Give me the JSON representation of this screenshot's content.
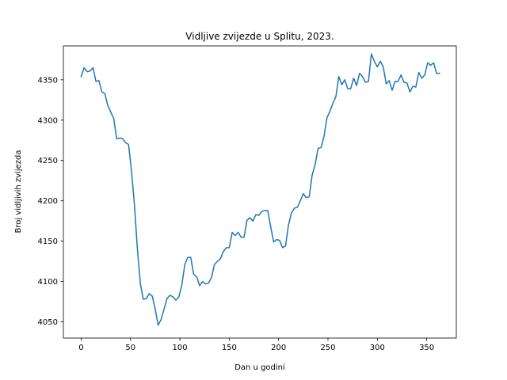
{
  "chart_data": {
    "type": "line",
    "title": "Vidljive zvijezde u Splitu, 2023.",
    "xlabel": "Dan u godini",
    "ylabel": "Broj vidljivih zvijezda",
    "xlim": [
      -18,
      380
    ],
    "ylim": [
      4030,
      4392
    ],
    "xticks": [
      0,
      50,
      100,
      150,
      200,
      250,
      300,
      350
    ],
    "yticks": [
      4050,
      4100,
      4150,
      4200,
      4250,
      4300,
      4350
    ],
    "grid": false,
    "color": "#1f77b4",
    "series": [
      {
        "x": [
          0,
          3,
          6,
          9,
          12,
          15,
          18,
          21,
          24,
          27,
          30,
          33,
          36,
          39,
          42,
          45,
          48,
          51,
          54,
          57,
          60,
          63,
          66,
          69,
          72,
          75,
          78,
          81,
          84,
          87,
          90,
          93,
          96,
          99,
          102,
          105,
          108,
          111,
          114,
          117,
          120,
          123,
          126,
          129,
          132,
          135,
          138,
          141,
          144,
          147,
          150,
          153,
          156,
          159,
          162,
          165,
          168,
          171,
          174,
          177,
          180,
          183,
          186,
          189,
          192,
          195,
          198,
          201,
          204,
          207,
          210,
          213,
          216,
          219,
          222,
          225,
          228,
          231,
          234,
          237,
          240,
          243,
          246,
          249,
          252,
          255,
          258,
          261,
          264,
          267,
          270,
          273,
          276,
          279,
          282,
          285,
          288,
          291,
          294,
          297,
          300,
          303,
          306,
          309,
          312,
          315,
          318,
          321,
          324,
          327,
          330,
          333,
          336,
          339,
          342,
          345,
          348,
          351,
          354,
          357,
          360,
          363
        ],
        "y": [
          4354,
          4365,
          4360,
          4361,
          4365,
          4348,
          4349,
          4335,
          4333,
          4318,
          4310,
          4302,
          4277,
          4278,
          4277,
          4272,
          4270,
          4237,
          4195,
          4140,
          4097,
          4078,
          4079,
          4085,
          4082,
          4066,
          4046,
          4053,
          4066,
          4079,
          4083,
          4081,
          4077,
          4081,
          4096,
          4121,
          4130,
          4130,
          4109,
          4106,
          4095,
          4100,
          4097,
          4098,
          4105,
          4121,
          4125,
          4128,
          4137,
          4142,
          4142,
          4161,
          4157,
          4161,
          4155,
          4155,
          4176,
          4179,
          4175,
          4183,
          4182,
          4187,
          4188,
          4188,
          4168,
          4149,
          4152,
          4151,
          4142,
          4144,
          4170,
          4185,
          4191,
          4192,
          4200,
          4209,
          4204,
          4205,
          4232,
          4245,
          4265,
          4266,
          4280,
          4303,
          4311,
          4321,
          4329,
          4354,
          4344,
          4350,
          4339,
          4339,
          4352,
          4343,
          4358,
          4354,
          4347,
          4348,
          4382,
          4373,
          4366,
          4373,
          4366,
          4345,
          4349,
          4337,
          4348,
          4348,
          4356,
          4347,
          4346,
          4335,
          4342,
          4341,
          4359,
          4352,
          4356,
          4371,
          4368,
          4371,
          4358,
          4358
        ]
      }
    ]
  }
}
